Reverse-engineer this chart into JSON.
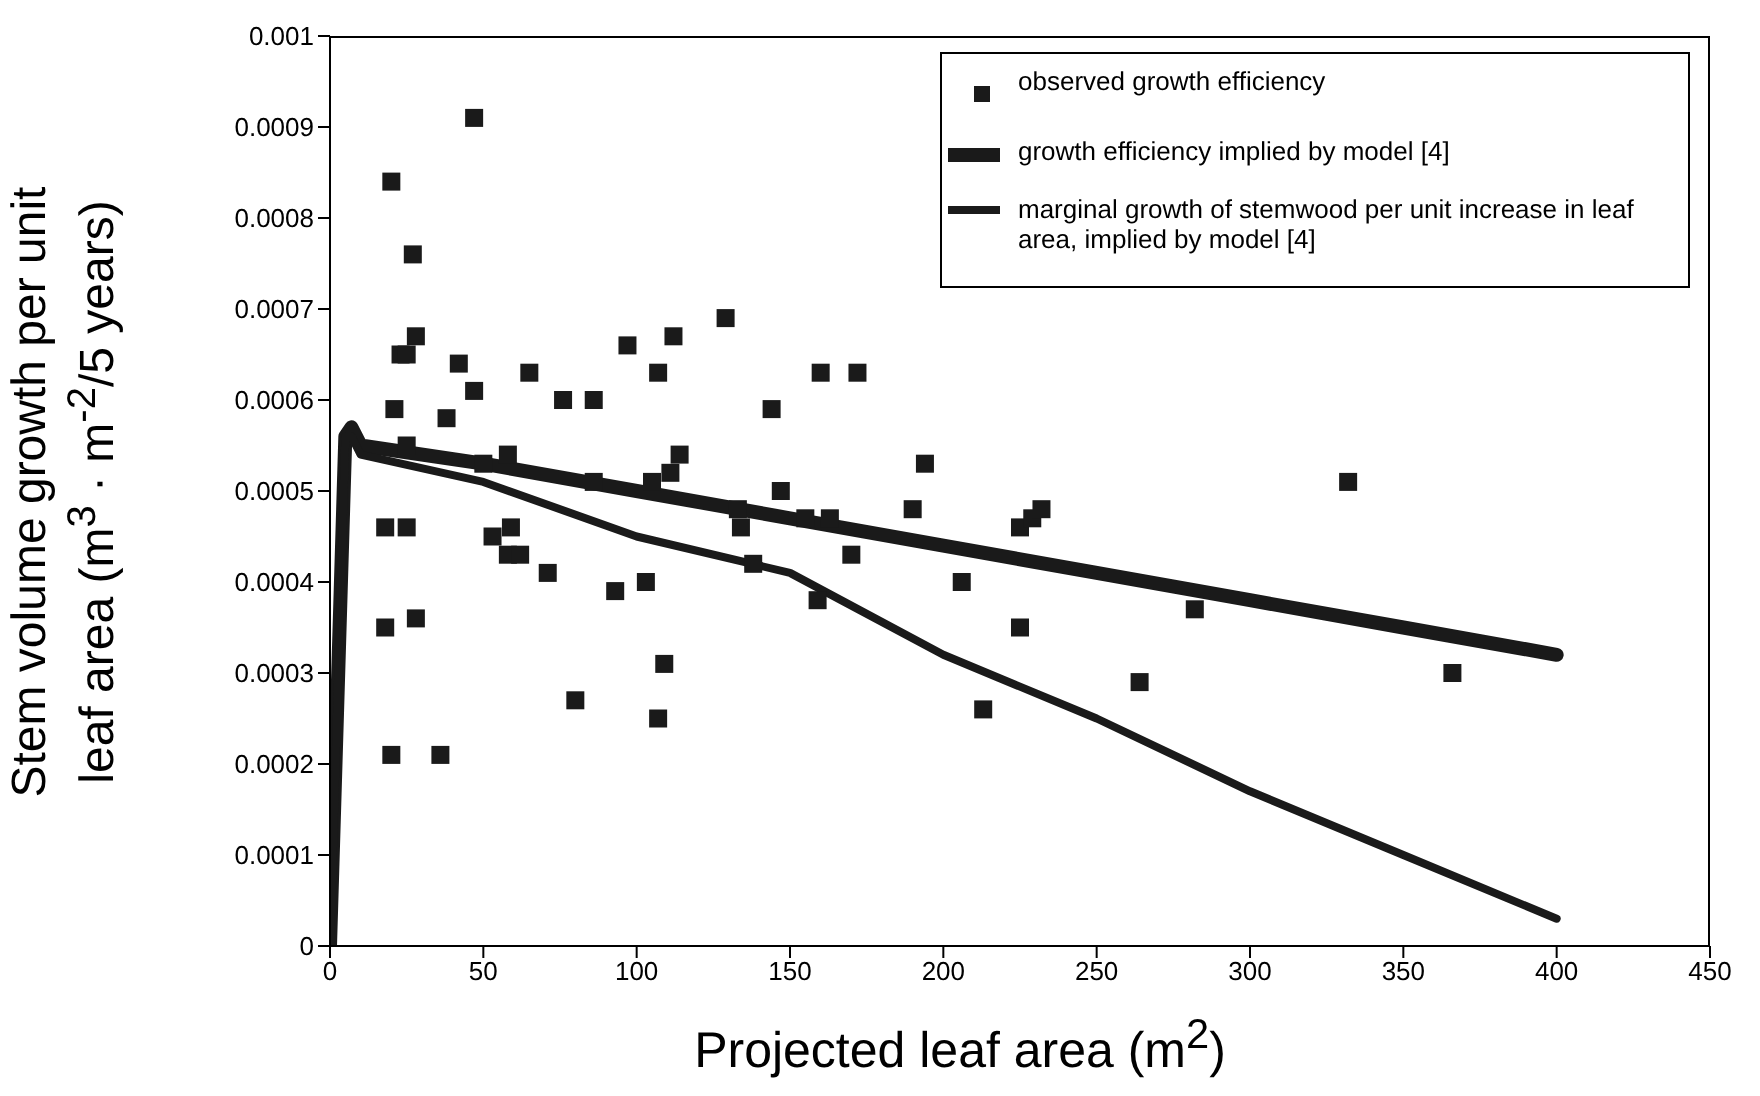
{
  "chart_data": {
    "type": "scatter",
    "xlabel": "Projected leaf area (m$^{2}$)",
    "ylabel": "Stem volume growth per unit leaf area (m$^{3}$ · m$^{-2}$/5 years)",
    "xlim": [
      0,
      450
    ],
    "xticks": [
      0,
      50,
      100,
      150,
      200,
      250,
      300,
      350,
      400,
      450
    ],
    "ylim": [
      0,
      0.001
    ],
    "yticks": [
      0,
      0.0001,
      0.0002,
      0.0003,
      0.0004,
      0.0005,
      0.0006,
      0.0007,
      0.0008,
      0.0009,
      0.001
    ],
    "legend": "top right",
    "grid": false,
    "series": [
      {
        "name": "observed growth efficiency",
        "marker": "square",
        "color": "#1a1a1a",
        "x": [
          47,
          20,
          27,
          28,
          23,
          25,
          42,
          47,
          38,
          21,
          25,
          65,
          76,
          86,
          97,
          107,
          112,
          129,
          50,
          58,
          53,
          114,
          111,
          105,
          86,
          18,
          25,
          59,
          58,
          62,
          71,
          93,
          103,
          109,
          107,
          80,
          18,
          28,
          20,
          36,
          133,
          134,
          138,
          144,
          147,
          155,
          163,
          160,
          172,
          159,
          170,
          190,
          194,
          206,
          213,
          225,
          225,
          229,
          232,
          264,
          282,
          332,
          366
        ],
        "values": [
          0.00091,
          0.00084,
          0.00076,
          0.00067,
          0.00065,
          0.00065,
          0.00064,
          0.00061,
          0.00058,
          0.00059,
          0.00055,
          0.00063,
          0.0006,
          0.0006,
          0.00066,
          0.00063,
          0.00067,
          0.00069,
          0.00053,
          0.00054,
          0.00045,
          0.00054,
          0.00052,
          0.00051,
          0.00051,
          0.00046,
          0.00046,
          0.00046,
          0.00043,
          0.00043,
          0.00041,
          0.00039,
          0.0004,
          0.00031,
          0.00025,
          0.00027,
          0.00035,
          0.00036,
          0.00021,
          0.00021,
          0.00048,
          0.00046,
          0.00042,
          0.00059,
          0.0005,
          0.00047,
          0.00047,
          0.00063,
          0.00063,
          0.00038,
          0.00043,
          0.00048,
          0.00053,
          0.0004,
          0.00026,
          0.00035,
          0.00046,
          0.00047,
          0.00048,
          0.00029,
          0.00037,
          0.00051,
          0.0003
        ]
      },
      {
        "name": "growth efficiency implied by model [4]",
        "type": "line",
        "marker": "none",
        "line_style": "solid",
        "color": "#1a1a1a",
        "x": [
          0,
          5,
          7,
          10,
          50,
          100,
          150,
          200,
          250,
          300,
          350,
          400
        ],
        "values": [
          0,
          0.00056,
          0.00057,
          0.00055,
          0.00053,
          0.0005,
          0.00047,
          0.00044,
          0.00041,
          0.00038,
          0.00035,
          0.00032
        ]
      },
      {
        "name": "marginal growth of stemwood per unit increase in leaf area, implied by model [4]",
        "type": "line",
        "marker": "none",
        "line_style": "solid",
        "color": "#1a1a1a",
        "x": [
          0,
          5,
          7,
          10,
          50,
          100,
          150,
          200,
          250,
          300,
          350,
          400
        ],
        "values": [
          0,
          0.00056,
          0.00056,
          0.00054,
          0.00051,
          0.00045,
          0.00041,
          0.00032,
          0.00025,
          0.00017,
          0.0001,
          3e-05
        ]
      }
    ]
  }
}
